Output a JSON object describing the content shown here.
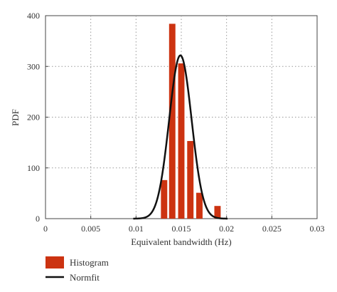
{
  "chart_data": {
    "type": "bar",
    "title": "",
    "xlabel": "Equivalent bandwidth (Hz)",
    "ylabel": "PDF",
    "xlim": [
      0,
      0.03
    ],
    "ylim": [
      0,
      400
    ],
    "grid": true,
    "legend_position": "bottom-left",
    "x_ticks": [
      "0",
      "0.005",
      "0.01",
      "0.015",
      "0.02",
      "0.025",
      "0.03"
    ],
    "y_ticks": [
      "0",
      "100",
      "200",
      "300",
      "400"
    ],
    "colors": {
      "histogram": "#cc3311",
      "normfit": "#111111",
      "grid": "#999999"
    },
    "series": [
      {
        "name": "Histogram",
        "kind": "histogram",
        "bin_width": 0.0007,
        "bins": [
          {
            "x": 0.0131,
            "value": 76
          },
          {
            "x": 0.014,
            "value": 384
          },
          {
            "x": 0.015,
            "value": 306
          },
          {
            "x": 0.016,
            "value": 153
          },
          {
            "x": 0.017,
            "value": 51
          },
          {
            "x": 0.019,
            "value": 25
          }
        ]
      },
      {
        "name": "Normfit",
        "kind": "normal_pdf",
        "mean": 0.0149,
        "sd": 0.00124
      }
    ]
  }
}
